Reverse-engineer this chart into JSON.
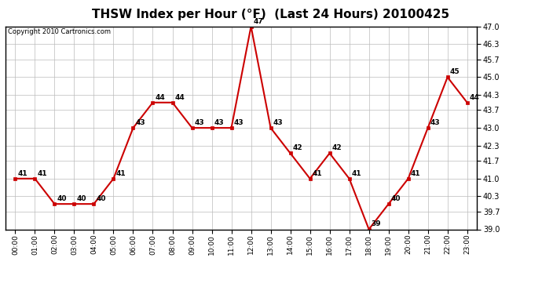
{
  "title": "THSW Index per Hour (°F)  (Last 24 Hours) 20100425",
  "copyright": "Copyright 2010 Cartronics.com",
  "hours": [
    "00:00",
    "01:00",
    "02:00",
    "03:00",
    "04:00",
    "05:00",
    "06:00",
    "07:00",
    "08:00",
    "09:00",
    "10:00",
    "11:00",
    "12:00",
    "13:00",
    "14:00",
    "15:00",
    "16:00",
    "17:00",
    "18:00",
    "19:00",
    "20:00",
    "21:00",
    "22:00",
    "23:00"
  ],
  "values": [
    41,
    41,
    40,
    40,
    40,
    41,
    43,
    44,
    44,
    43,
    43,
    43,
    47,
    43,
    42,
    41,
    42,
    41,
    39,
    40,
    41,
    43,
    45,
    44
  ],
  "ylim_min": 39.0,
  "ylim_max": 47.0,
  "yticks": [
    39.0,
    39.7,
    40.3,
    41.0,
    41.7,
    42.3,
    43.0,
    43.7,
    44.3,
    45.0,
    45.7,
    46.3,
    47.0
  ],
  "line_color": "#cc0000",
  "marker_color": "#cc0000",
  "bg_color": "#ffffff",
  "grid_color": "#bbbbbb",
  "title_fontsize": 11,
  "copyright_fontsize": 6,
  "label_fontsize": 6.5
}
